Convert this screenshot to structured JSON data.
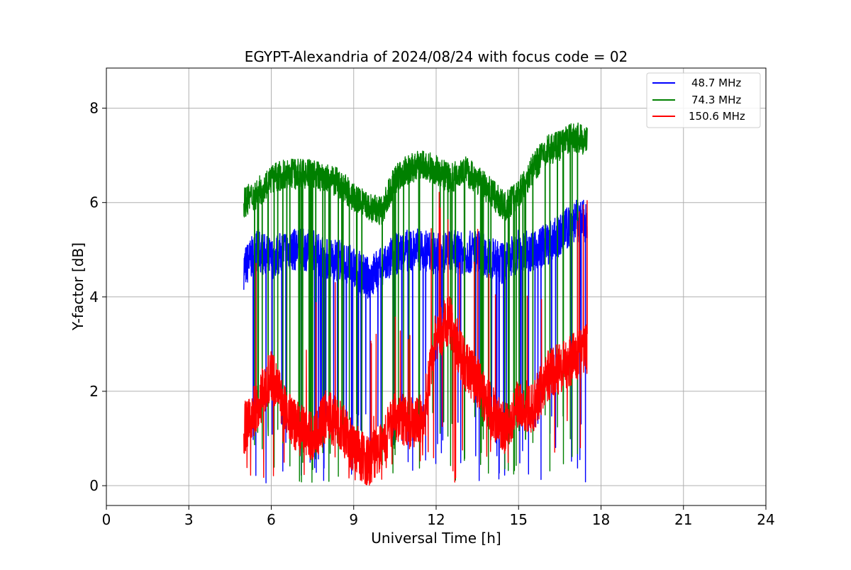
{
  "chart_data": {
    "type": "line",
    "title": "EGYPT-Alexandria of 2024/08/24 with focus code = 02",
    "xlabel": "Universal Time [h]",
    "ylabel": "Y-factor [dB]",
    "xlim": [
      0,
      24
    ],
    "ylim": [
      -0.42,
      8.85
    ],
    "xticks": [
      0,
      3,
      6,
      9,
      12,
      15,
      18,
      21,
      24
    ],
    "yticks": [
      0,
      2,
      4,
      6,
      8
    ],
    "xtick_labels": [
      "0",
      "3",
      "6",
      "9",
      "12",
      "15",
      "18",
      "21",
      "24"
    ],
    "ytick_labels": [
      "0",
      "2",
      "4",
      "6",
      "8"
    ],
    "grid": true,
    "legend_position": "top-right",
    "series": [
      {
        "name": "48.7 MHz",
        "color": "#0000ff",
        "x": [
          5.0,
          5.5,
          6.0,
          6.5,
          7.0,
          7.5,
          8.0,
          8.5,
          9.0,
          9.5,
          10.0,
          10.5,
          11.0,
          11.5,
          12.0,
          12.5,
          13.0,
          13.5,
          14.0,
          14.5,
          15.0,
          15.5,
          16.0,
          16.5,
          17.0,
          17.5
        ],
        "y": [
          4.6,
          5.0,
          4.8,
          5.0,
          5.0,
          5.0,
          4.8,
          4.8,
          4.6,
          4.4,
          4.6,
          4.9,
          5.0,
          5.0,
          4.9,
          5.0,
          4.9,
          5.0,
          4.8,
          4.7,
          5.0,
          5.0,
          5.1,
          5.3,
          5.6,
          5.6
        ]
      },
      {
        "name": "74.3 MHz",
        "color": "#008000",
        "x": [
          5.0,
          5.5,
          6.0,
          6.5,
          7.0,
          7.5,
          8.0,
          8.5,
          9.0,
          9.5,
          10.0,
          10.5,
          11.0,
          11.5,
          12.0,
          12.5,
          13.0,
          13.5,
          14.0,
          14.5,
          15.0,
          15.5,
          16.0,
          16.5,
          17.0,
          17.5
        ],
        "y": [
          6.0,
          6.2,
          6.5,
          6.6,
          6.6,
          6.6,
          6.5,
          6.4,
          6.1,
          5.9,
          5.8,
          6.5,
          6.7,
          6.8,
          6.7,
          6.5,
          6.7,
          6.5,
          6.2,
          5.9,
          6.2,
          6.7,
          7.1,
          7.2,
          7.4,
          7.3
        ]
      },
      {
        "name": "150.6 MHz",
        "color": "#ff0000",
        "x": [
          5.0,
          5.5,
          6.0,
          6.5,
          7.0,
          7.5,
          8.0,
          8.5,
          9.0,
          9.5,
          10.0,
          10.5,
          11.0,
          11.5,
          12.0,
          12.5,
          13.0,
          13.5,
          14.0,
          14.5,
          15.0,
          15.5,
          16.0,
          16.5,
          17.0,
          17.5
        ],
        "y": [
          1.2,
          1.7,
          2.4,
          1.6,
          1.2,
          1.0,
          1.5,
          1.3,
          0.8,
          0.5,
          0.8,
          1.5,
          1.3,
          1.4,
          3.2,
          3.5,
          2.6,
          2.2,
          1.6,
          1.2,
          1.8,
          1.6,
          2.3,
          2.5,
          2.7,
          2.9
        ]
      }
    ]
  }
}
